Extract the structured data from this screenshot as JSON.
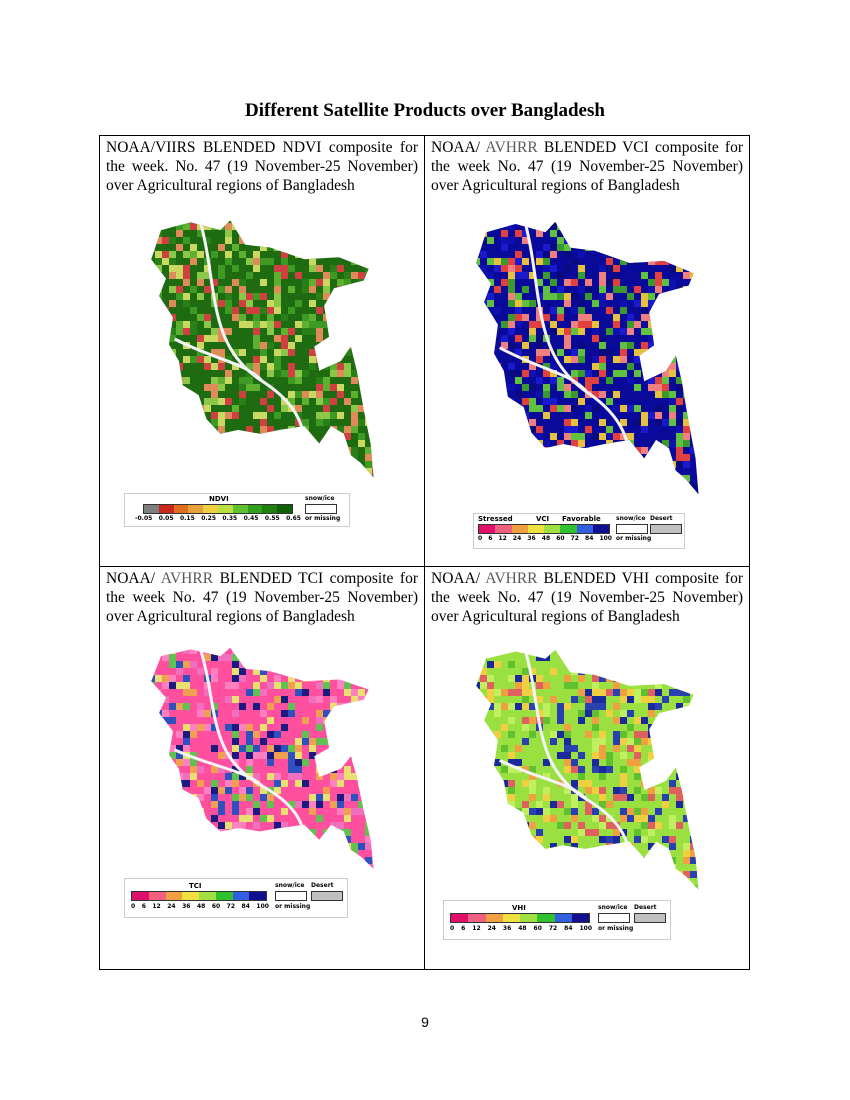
{
  "title": "Different Satellite Products over Bangladesh",
  "page_number": "9",
  "panels": {
    "ndvi": {
      "caption_parts": [
        "NOAA/VIIRS BLENDED NDVI composite for the week. No. 47 (19 November-25 November) over Agricultural regions of Bangladesh"
      ],
      "legend_title": "NDVI",
      "ticks": [
        "-0.05",
        "0.05",
        "0.15",
        "0.25",
        "0.35",
        "0.45",
        "0.55",
        "0.65"
      ],
      "snow_label": "snow/ice",
      "missing_label": "or missing",
      "colors": [
        "#7f7f7f",
        "#c8281e",
        "#e07020",
        "#e8a03a",
        "#f0d040",
        "#b8e040",
        "#60c030",
        "#30a020",
        "#208010",
        "#106008"
      ]
    },
    "vci": {
      "caption_prefix": "NOAA/ ",
      "caption_grey": "AVHRR",
      "caption_suffix": " BLENDED VCI composite for the week No. 47 (19 November-25 November) over Agricultural regions of Bangladesh",
      "legend_stressed": "Stressed",
      "legend_title": "VCI",
      "legend_favorable": "Favorable",
      "ticks": [
        "0",
        "6",
        "12",
        "24",
        "36",
        "48",
        "60",
        "72",
        "84",
        "100"
      ],
      "snow_label": "snow/ice",
      "desert_label": "Desert",
      "missing_label": "or missing",
      "colors": [
        "#e0106a",
        "#f06080",
        "#f0a040",
        "#f0e040",
        "#a0e040",
        "#30c030",
        "#3060e0",
        "#101090"
      ]
    },
    "tci": {
      "caption_prefix": "NOAA/ ",
      "caption_grey": "AVHRR",
      "caption_suffix": " BLENDED TCI composite for the week No. 47 (19 November-25 November) over Agricultural regions of Bangladesh",
      "legend_title": "TCI",
      "ticks": [
        "0",
        "6",
        "12",
        "24",
        "36",
        "48",
        "60",
        "72",
        "84",
        "100"
      ],
      "snow_label": "snow/ice",
      "desert_label": "Desert",
      "missing_label": "or missing",
      "colors": [
        "#e0106a",
        "#f06080",
        "#f0a040",
        "#f0e040",
        "#a0e040",
        "#30c030",
        "#3060e0",
        "#101090"
      ]
    },
    "vhi": {
      "caption_prefix": "NOAA/ ",
      "caption_grey": "AVHRR",
      "caption_suffix": " BLENDED VHI composite for the week No. 47 (19 November-25 November) over Agricultural regions of Bangladesh",
      "legend_title": "VHI",
      "ticks": [
        "0",
        "6",
        "12",
        "24",
        "36",
        "48",
        "60",
        "72",
        "84",
        "100"
      ],
      "snow_label": "snow/ice",
      "desert_label": "Desert",
      "missing_label": "or missing",
      "colors": [
        "#e0106a",
        "#f06080",
        "#f0a040",
        "#f0e040",
        "#a0e040",
        "#30c030",
        "#3060e0",
        "#101090"
      ]
    }
  },
  "map_palettes": {
    "ndvi": [
      "#1f6b12",
      "#2a8018",
      "#3d9a22",
      "#5db030",
      "#8bc84a",
      "#c8d860",
      "#e08a5a",
      "#d04040"
    ],
    "vci": [
      "#0a0a9a",
      "#1010b0",
      "#1a1acc",
      "#0a0a80",
      "#3a9a30",
      "#60c040",
      "#f08080",
      "#e04040",
      "#e8c040"
    ],
    "tci": [
      "#ff50a0",
      "#f070c0",
      "#e8e070",
      "#f0a050",
      "#60c050",
      "#3050c0",
      "#1a1a80",
      "#ff80c0"
    ],
    "vhi": [
      "#9ae040",
      "#60c030",
      "#c0f060",
      "#1a2a9a",
      "#2a40b0",
      "#f0d040",
      "#f0a040",
      "#e06060"
    ]
  }
}
